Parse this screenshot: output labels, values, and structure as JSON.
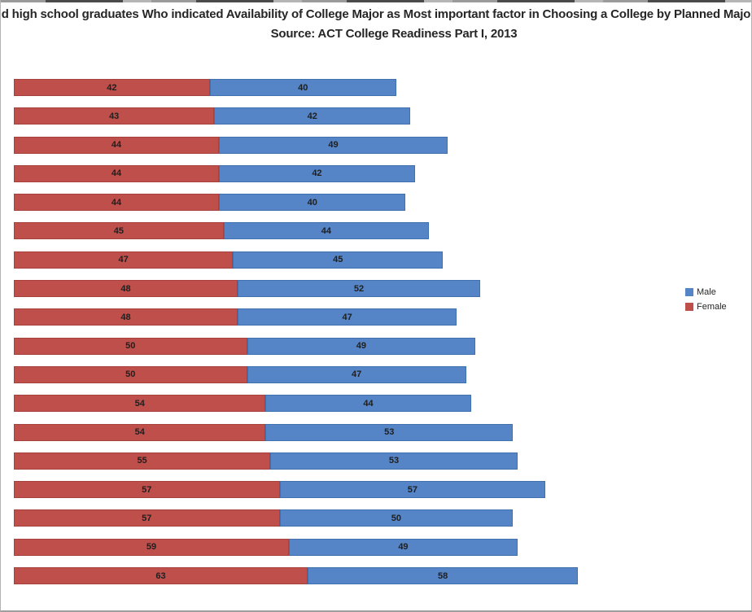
{
  "chart_data": {
    "type": "bar",
    "variant": "horizontal-stacked",
    "title": "d high school graduates Who indicated Availability of College Major as Most important factor in Choosing a College by Planned Majo",
    "subtitle": "Source: ACT College Readiness Part I, 2013",
    "bar_value_labels": true,
    "series": [
      {
        "name": "Female",
        "color": "#BF4F4B",
        "border_color": "#A6413E",
        "values": [
          42,
          43,
          44,
          44,
          44,
          45,
          47,
          48,
          48,
          50,
          50,
          54,
          54,
          55,
          57,
          57,
          59,
          63
        ]
      },
      {
        "name": "Male",
        "color": "#5585C6",
        "border_color": "#4170AE",
        "values": [
          40,
          42,
          49,
          42,
          40,
          44,
          45,
          52,
          47,
          49,
          47,
          44,
          53,
          53,
          57,
          50,
          49,
          58
        ]
      }
    ],
    "legend": {
      "position": "right",
      "entries": [
        "Male",
        "Female"
      ]
    }
  },
  "colors": {
    "value_label_text": "#1f1f1f",
    "title_text": "#262626"
  }
}
